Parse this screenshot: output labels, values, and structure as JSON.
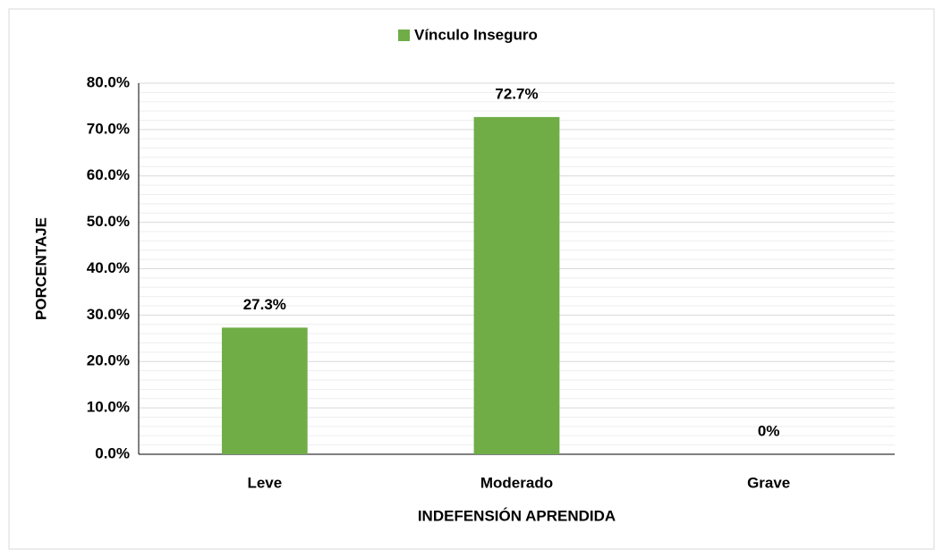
{
  "chart_data": {
    "type": "bar",
    "categories": [
      "Leve",
      "Moderado",
      "Grave"
    ],
    "series": [
      {
        "name": "Vínculo Inseguro",
        "color": "#70ad47",
        "values": [
          27.3,
          72.7,
          0
        ]
      }
    ],
    "value_labels": [
      "27.3%",
      "72.7%",
      "0%"
    ],
    "x_label": "INDEFENSIÓN APRENDIDA",
    "y_label": "PORCENTAJE",
    "ylim": [
      0,
      80
    ],
    "yticks": [
      {
        "value": 0,
        "label": "0.0%"
      },
      {
        "value": 10,
        "label": "10.0%"
      },
      {
        "value": 20,
        "label": "20.0%"
      },
      {
        "value": 30,
        "label": "30.0%"
      },
      {
        "value": 40,
        "label": "40.0%"
      },
      {
        "value": 50,
        "label": "50.0%"
      },
      {
        "value": 60,
        "label": "60.0%"
      },
      {
        "value": 70,
        "label": "70.0%"
      },
      {
        "value": 80,
        "label": "80.0%"
      }
    ],
    "grid": true,
    "minor_grid": true,
    "legend": "top"
  }
}
